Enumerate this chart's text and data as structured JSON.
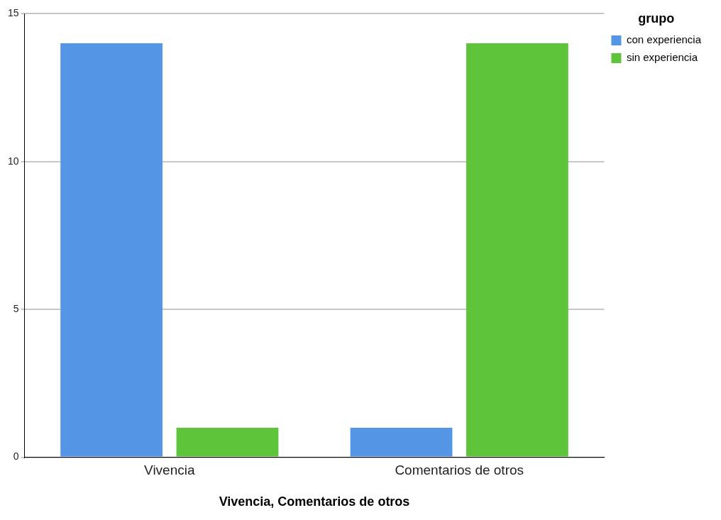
{
  "chart_data": {
    "type": "bar",
    "xlabel": "Vivencia, Comentarios de otros",
    "legend_title": "grupo",
    "categories": [
      "Vivencia",
      "Comentarios de otros"
    ],
    "series": [
      {
        "name": "con experiencia",
        "color": "#5595e5",
        "values": [
          14,
          1
        ]
      },
      {
        "name": "sin experiencia",
        "color": "#5ec43a",
        "values": [
          1,
          14
        ]
      }
    ],
    "ylim": [
      0,
      15
    ],
    "yticks": [
      0,
      5,
      10,
      15
    ],
    "grid": "y",
    "legend": "top right"
  }
}
